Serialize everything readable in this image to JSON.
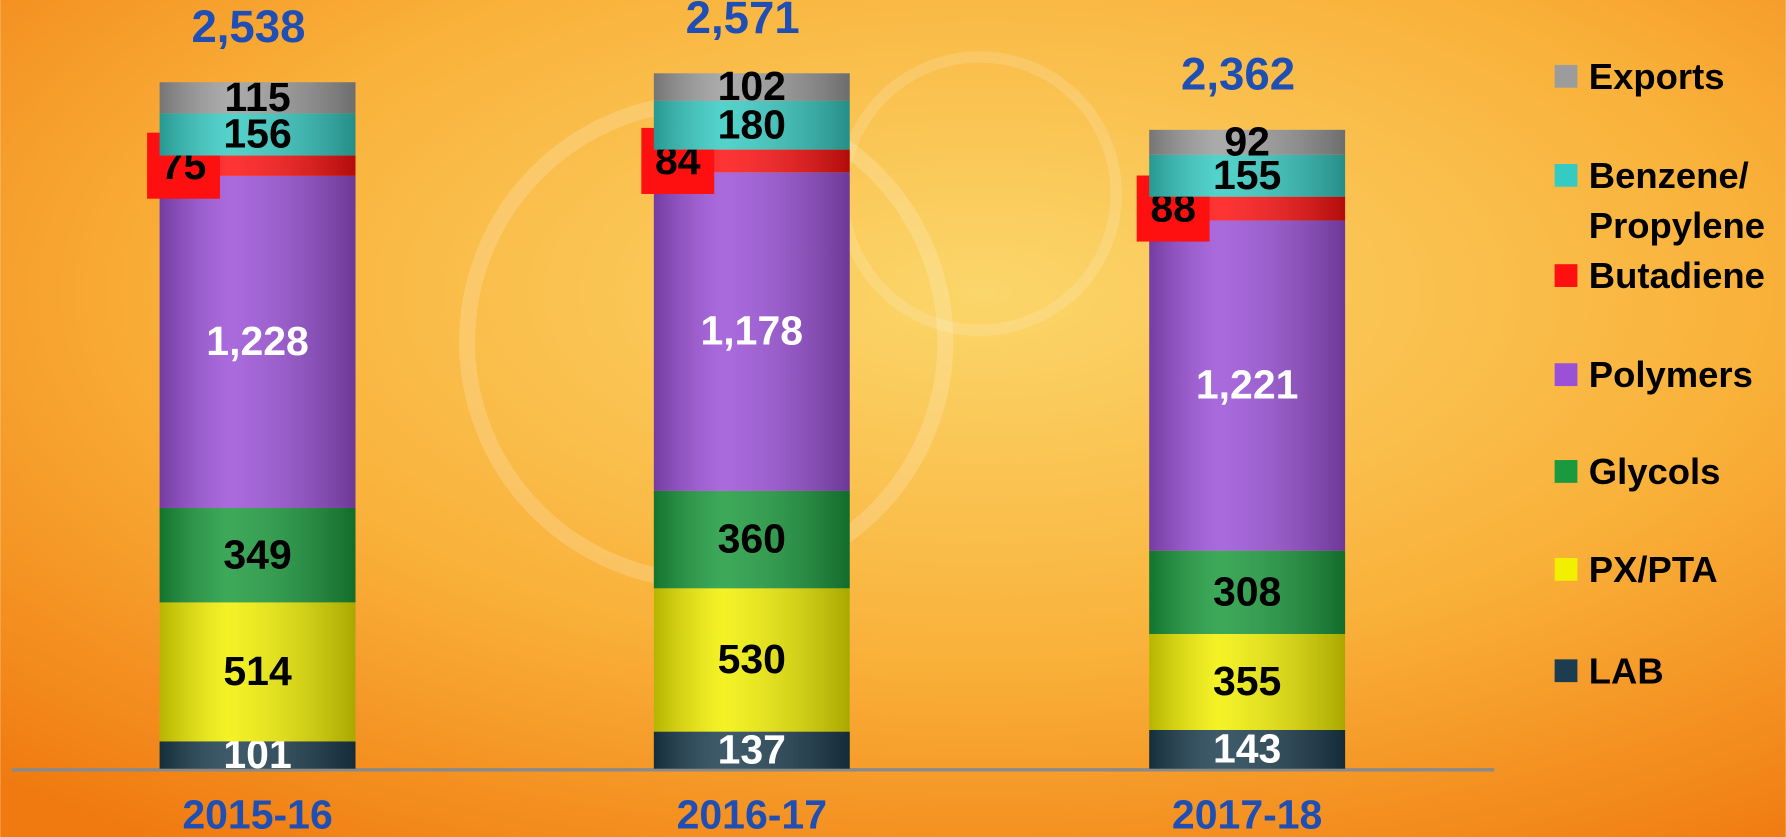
{
  "chart_data": {
    "type": "stacked_bar",
    "categories": [
      "2015-16",
      "2016-17",
      "2017-18"
    ],
    "series": [
      {
        "name": "LAB",
        "color": "#1c3d4f",
        "label_color": "#ffffff",
        "values": [
          101,
          137,
          143
        ]
      },
      {
        "name": "PX/PTA",
        "color": "#f2f000",
        "label_color": "#000000",
        "values": [
          514,
          530,
          355
        ]
      },
      {
        "name": "Glycols",
        "color": "#1a9a3c",
        "label_color": "#000000",
        "values": [
          349,
          360,
          308
        ]
      },
      {
        "name": "Polymers",
        "color": "#9b50d8",
        "label_color": "#ffffff",
        "values": [
          1228,
          1178,
          1221
        ],
        "value_labels": [
          "1,228",
          "1,178",
          "1,221"
        ]
      },
      {
        "name": "Butadiene",
        "color": "#ff1010",
        "label_color": "#000000",
        "values": [
          75,
          84,
          88
        ]
      },
      {
        "name": "Benzene/ Propylene",
        "color": "#35cbc2",
        "label_color": "#000000",
        "values": [
          156,
          180,
          155
        ]
      },
      {
        "name": "Exports",
        "color": "#9c9c9c",
        "label_color": "#000000",
        "values": [
          115,
          102,
          92
        ]
      }
    ],
    "totals": {
      "values": [
        2538,
        2571,
        2362
      ],
      "value_labels": [
        "2,538",
        "2,571",
        "2,362"
      ],
      "color": "#1f4fb4"
    },
    "ylim": [
      0,
      2800
    ]
  }
}
